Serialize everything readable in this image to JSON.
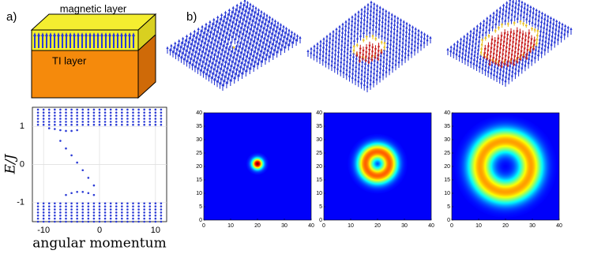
{
  "panel_labels": [
    "a)",
    "b)"
  ],
  "heterostructure": {
    "top_layer": "magnetic layer",
    "bottom_layer": "TI layer"
  },
  "chart_data": {
    "type": "scatter",
    "ylabel": "E/J",
    "xlabel": "angular momentum",
    "xlim": [
      -12,
      12
    ],
    "ylim": [
      -1.5,
      1.5
    ],
    "xticks": [
      -10,
      0,
      10
    ],
    "yticks": [
      1,
      0,
      -1
    ],
    "grid": true,
    "color": "#2b3bd6",
    "bulk": {
      "x": [
        -11,
        -10,
        -9,
        -8,
        -7,
        -6,
        -5,
        -4,
        -3,
        -2,
        -1,
        0,
        1,
        2,
        3,
        4,
        5,
        6,
        7,
        8,
        9,
        10,
        11
      ],
      "levels": [
        1.04,
        1.12,
        1.2,
        1.28,
        1.36,
        1.44,
        -1.02,
        -1.1,
        -1.18,
        -1.26,
        -1.34,
        -1.42,
        -1.5
      ]
    },
    "edge_states": {
      "x": [
        -9,
        -8,
        -7,
        -6,
        -5,
        -4,
        -7,
        -6,
        -5,
        -4,
        -3,
        -2,
        -1,
        -6,
        -5,
        -4,
        -3,
        -2,
        -1
      ],
      "y": [
        0.95,
        0.93,
        0.9,
        0.88,
        0.88,
        0.9,
        0.62,
        0.42,
        0.24,
        0.05,
        -0.15,
        -0.35,
        -0.55,
        -0.8,
        -0.75,
        -0.72,
        -0.72,
        -0.75,
        -0.8
      ]
    }
  },
  "heatmaps": {
    "xlim": [
      0,
      40
    ],
    "ylim": [
      0,
      40
    ],
    "xticks": [
      0,
      10,
      20,
      30,
      40
    ],
    "yticks": [
      0,
      5,
      10,
      15,
      20,
      25,
      30,
      35,
      40
    ],
    "maps": [
      {
        "center": [
          20,
          21
        ],
        "radius": 0,
        "width": 1.4,
        "peak": 1
      },
      {
        "center": [
          20,
          21
        ],
        "radius": 4.5,
        "width": 2.2,
        "peak": 0.78
      },
      {
        "center": [
          20,
          20
        ],
        "radius": 9.5,
        "width": 3.2,
        "peak": 0.72
      }
    ]
  }
}
